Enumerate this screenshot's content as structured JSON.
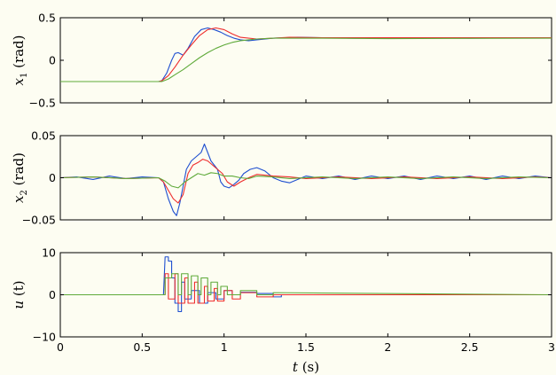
{
  "colors": {
    "background": "#fdfdf2",
    "blue": "#1f4fd0",
    "red": "#ee2c2c",
    "green": "#5faa3a"
  },
  "chart_data": [
    {
      "type": "line",
      "ylabel_var": "x",
      "ylabel_sub": "1",
      "ylabel_unit": "(rad)",
      "xlim": [
        0,
        3
      ],
      "ylim": [
        -0.5,
        0.5
      ],
      "yticks": [
        0.5,
        0,
        -0.5
      ],
      "ytick_labels": [
        "0.5",
        "0",
        "−0.5"
      ],
      "series": [
        {
          "color": "blue",
          "x": [
            0,
            0.6,
            0.62,
            0.65,
            0.68,
            0.7,
            0.72,
            0.75,
            0.78,
            0.82,
            0.86,
            0.9,
            0.94,
            0.98,
            1.02,
            1.06,
            1.1,
            1.15,
            1.2,
            1.3,
            1.45,
            1.6,
            1.8,
            2.0,
            2.5,
            3.0
          ],
          "y": [
            -0.25,
            -0.25,
            -0.24,
            -0.15,
            0.0,
            0.08,
            0.09,
            0.06,
            0.14,
            0.28,
            0.36,
            0.38,
            0.36,
            0.33,
            0.29,
            0.26,
            0.24,
            0.23,
            0.24,
            0.26,
            0.27,
            0.265,
            0.26,
            0.265,
            0.26,
            0.265
          ]
        },
        {
          "color": "red",
          "x": [
            0,
            0.6,
            0.62,
            0.66,
            0.7,
            0.75,
            0.8,
            0.85,
            0.9,
            0.95,
            1.0,
            1.05,
            1.1,
            1.2,
            1.3,
            1.4,
            1.6,
            2.0,
            3.0
          ],
          "y": [
            -0.25,
            -0.25,
            -0.24,
            -0.18,
            -0.08,
            0.06,
            0.18,
            0.29,
            0.36,
            0.38,
            0.36,
            0.31,
            0.27,
            0.25,
            0.26,
            0.27,
            0.265,
            0.265,
            0.265
          ]
        },
        {
          "color": "green",
          "x": [
            0,
            0.62,
            0.66,
            0.7,
            0.75,
            0.8,
            0.85,
            0.9,
            0.95,
            1.0,
            1.05,
            1.1,
            1.15,
            1.2,
            1.25,
            1.3,
            1.4,
            1.6,
            2.0,
            3.0
          ],
          "y": [
            -0.25,
            -0.25,
            -0.22,
            -0.17,
            -0.11,
            -0.04,
            0.03,
            0.09,
            0.14,
            0.18,
            0.21,
            0.23,
            0.24,
            0.25,
            0.255,
            0.26,
            0.26,
            0.26,
            0.255,
            0.26
          ]
        }
      ]
    },
    {
      "type": "line",
      "ylabel_var": "x",
      "ylabel_sub": "2",
      "ylabel_unit": "(rad)",
      "xlim": [
        0,
        3
      ],
      "ylim": [
        -0.05,
        0.05
      ],
      "yticks": [
        0.05,
        0,
        -0.05
      ],
      "ytick_labels": [
        "0.05",
        "0",
        "−0.05"
      ],
      "series": [
        {
          "color": "blue",
          "x": [
            0,
            0.1,
            0.2,
            0.3,
            0.4,
            0.5,
            0.6,
            0.63,
            0.66,
            0.69,
            0.71,
            0.73,
            0.75,
            0.77,
            0.8,
            0.83,
            0.86,
            0.88,
            0.9,
            0.92,
            0.94,
            0.96,
            0.98,
            1.0,
            1.03,
            1.06,
            1.09,
            1.12,
            1.16,
            1.2,
            1.25,
            1.3,
            1.35,
            1.4,
            1.45,
            1.5,
            1.6,
            1.7,
            1.8,
            1.9,
            2.0,
            2.1,
            2.2,
            2.3,
            2.4,
            2.5,
            2.6,
            2.7,
            2.8,
            2.9,
            3.0
          ],
          "y": [
            0,
            0.001,
            -0.002,
            0.002,
            -0.001,
            0.001,
            0,
            -0.005,
            -0.025,
            -0.04,
            -0.045,
            -0.03,
            -0.01,
            0.01,
            0.02,
            0.025,
            0.03,
            0.04,
            0.03,
            0.02,
            0.015,
            0.01,
            -0.005,
            -0.01,
            -0.012,
            -0.008,
            -0.003,
            0.005,
            0.01,
            0.012,
            0.008,
            0,
            -0.004,
            -0.006,
            -0.002,
            0.002,
            -0.001,
            0.002,
            -0.002,
            0.002,
            -0.001,
            0.002,
            -0.002,
            0.002,
            -0.001,
            0.002,
            -0.002,
            0.002,
            -0.001,
            0.002,
            0
          ]
        },
        {
          "color": "red",
          "x": [
            0,
            0.2,
            0.4,
            0.6,
            0.63,
            0.66,
            0.69,
            0.72,
            0.75,
            0.78,
            0.81,
            0.84,
            0.87,
            0.9,
            0.93,
            0.96,
            0.99,
            1.02,
            1.06,
            1.1,
            1.15,
            1.2,
            1.3,
            1.4,
            1.5,
            1.7,
            1.9,
            2.1,
            2.3,
            2.5,
            2.7,
            2.9,
            3.0
          ],
          "y": [
            0,
            0.001,
            -0.001,
            0,
            -0.005,
            -0.015,
            -0.025,
            -0.03,
            -0.02,
            0.005,
            0.015,
            0.018,
            0.022,
            0.02,
            0.015,
            0.01,
            0.005,
            -0.005,
            -0.01,
            -0.005,
            0,
            0.004,
            0.002,
            0.001,
            -0.001,
            0.001,
            -0.001,
            0.001,
            -0.001,
            0.001,
            -0.001,
            0.001,
            0
          ]
        },
        {
          "color": "green",
          "x": [
            0,
            0.2,
            0.4,
            0.6,
            0.64,
            0.68,
            0.72,
            0.76,
            0.8,
            0.84,
            0.88,
            0.92,
            0.96,
            1.0,
            1.05,
            1.1,
            1.15,
            1.2,
            1.3,
            1.4,
            1.6,
            1.8,
            2.0,
            2.2,
            2.4,
            2.6,
            2.8,
            3.0
          ],
          "y": [
            0,
            0.001,
            -0.001,
            0,
            -0.004,
            -0.01,
            -0.012,
            -0.005,
            0,
            0.005,
            0.003,
            0.006,
            0.005,
            0.002,
            0.002,
            0,
            -0.001,
            0.002,
            0.001,
            -0.001,
            0.001,
            -0.001,
            0.001,
            -0.001,
            0.001,
            -0.001,
            0.001,
            0
          ]
        }
      ]
    },
    {
      "type": "line",
      "ylabel_var": "u",
      "ylabel_sub": "",
      "ylabel_unit": "(t)",
      "xlabel_var": "t",
      "xlabel_unit": "(s)",
      "xlim": [
        0,
        3
      ],
      "ylim": [
        -10,
        10
      ],
      "yticks": [
        10,
        0,
        -10
      ],
      "ytick_labels": [
        "10",
        "0",
        "−10"
      ],
      "xticks": [
        0,
        0.5,
        1,
        1.5,
        2,
        2.5,
        3
      ],
      "xtick_labels": [
        "0",
        "0.5",
        "1",
        "1.5",
        "2",
        "2.5",
        "3"
      ],
      "series": [
        {
          "color": "blue",
          "x": [
            0,
            0.63,
            0.64,
            0.66,
            0.66,
            0.68,
            0.68,
            0.7,
            0.7,
            0.72,
            0.72,
            0.74,
            0.74,
            0.76,
            0.76,
            0.8,
            0.8,
            0.85,
            0.85,
            0.9,
            0.9,
            0.95,
            0.95,
            1.0,
            1.0,
            1.05,
            1.05,
            1.1,
            1.1,
            1.2,
            1.2,
            1.3,
            1.3,
            1.35,
            1.35,
            3.0
          ],
          "y": [
            0,
            0,
            9,
            9,
            8,
            8,
            4,
            4,
            -2,
            -2,
            -4,
            -4,
            3,
            3,
            -1,
            -1,
            1,
            1,
            -2,
            -2,
            0.5,
            0.5,
            -1,
            -1,
            1,
            1,
            0,
            0,
            0.6,
            0.6,
            0.3,
            0.3,
            -0.5,
            -0.5,
            0,
            0
          ]
        },
        {
          "color": "red",
          "x": [
            0,
            0.64,
            0.64,
            0.66,
            0.66,
            0.7,
            0.7,
            0.72,
            0.72,
            0.76,
            0.76,
            0.78,
            0.78,
            0.82,
            0.82,
            0.84,
            0.84,
            0.88,
            0.88,
            0.9,
            0.9,
            0.94,
            0.94,
            0.96,
            0.96,
            1.0,
            1.0,
            1.05,
            1.05,
            1.1,
            1.1,
            1.2,
            1.2,
            1.3,
            1.3,
            3.0
          ],
          "y": [
            0,
            0,
            5,
            5,
            -1,
            -1,
            5,
            5,
            -2,
            -2,
            4,
            4,
            -2,
            -2,
            3,
            3,
            -2,
            -2,
            2,
            2,
            -1.5,
            -1.5,
            1.5,
            1.5,
            -1.5,
            -1.5,
            1,
            1,
            -1,
            -1,
            0.5,
            0.5,
            -0.5,
            -0.5,
            0,
            0
          ]
        },
        {
          "color": "green",
          "x": [
            0,
            0.64,
            0.64,
            0.68,
            0.68,
            0.72,
            0.72,
            0.74,
            0.74,
            0.78,
            0.78,
            0.8,
            0.8,
            0.84,
            0.84,
            0.86,
            0.86,
            0.9,
            0.9,
            0.92,
            0.92,
            0.96,
            0.96,
            0.98,
            0.98,
            1.02,
            1.02,
            1.1,
            1.1,
            1.2,
            1.2,
            1.3,
            1.3,
            3.0
          ],
          "y": [
            0,
            0,
            4,
            4,
            5,
            5,
            0,
            0,
            5,
            5,
            0,
            0,
            4.5,
            4.5,
            0,
            0,
            4,
            4,
            0,
            0,
            3,
            3,
            0,
            0,
            2,
            2,
            0,
            0,
            1,
            1,
            0,
            0,
            0.5,
            0
          ]
        }
      ]
    }
  ]
}
